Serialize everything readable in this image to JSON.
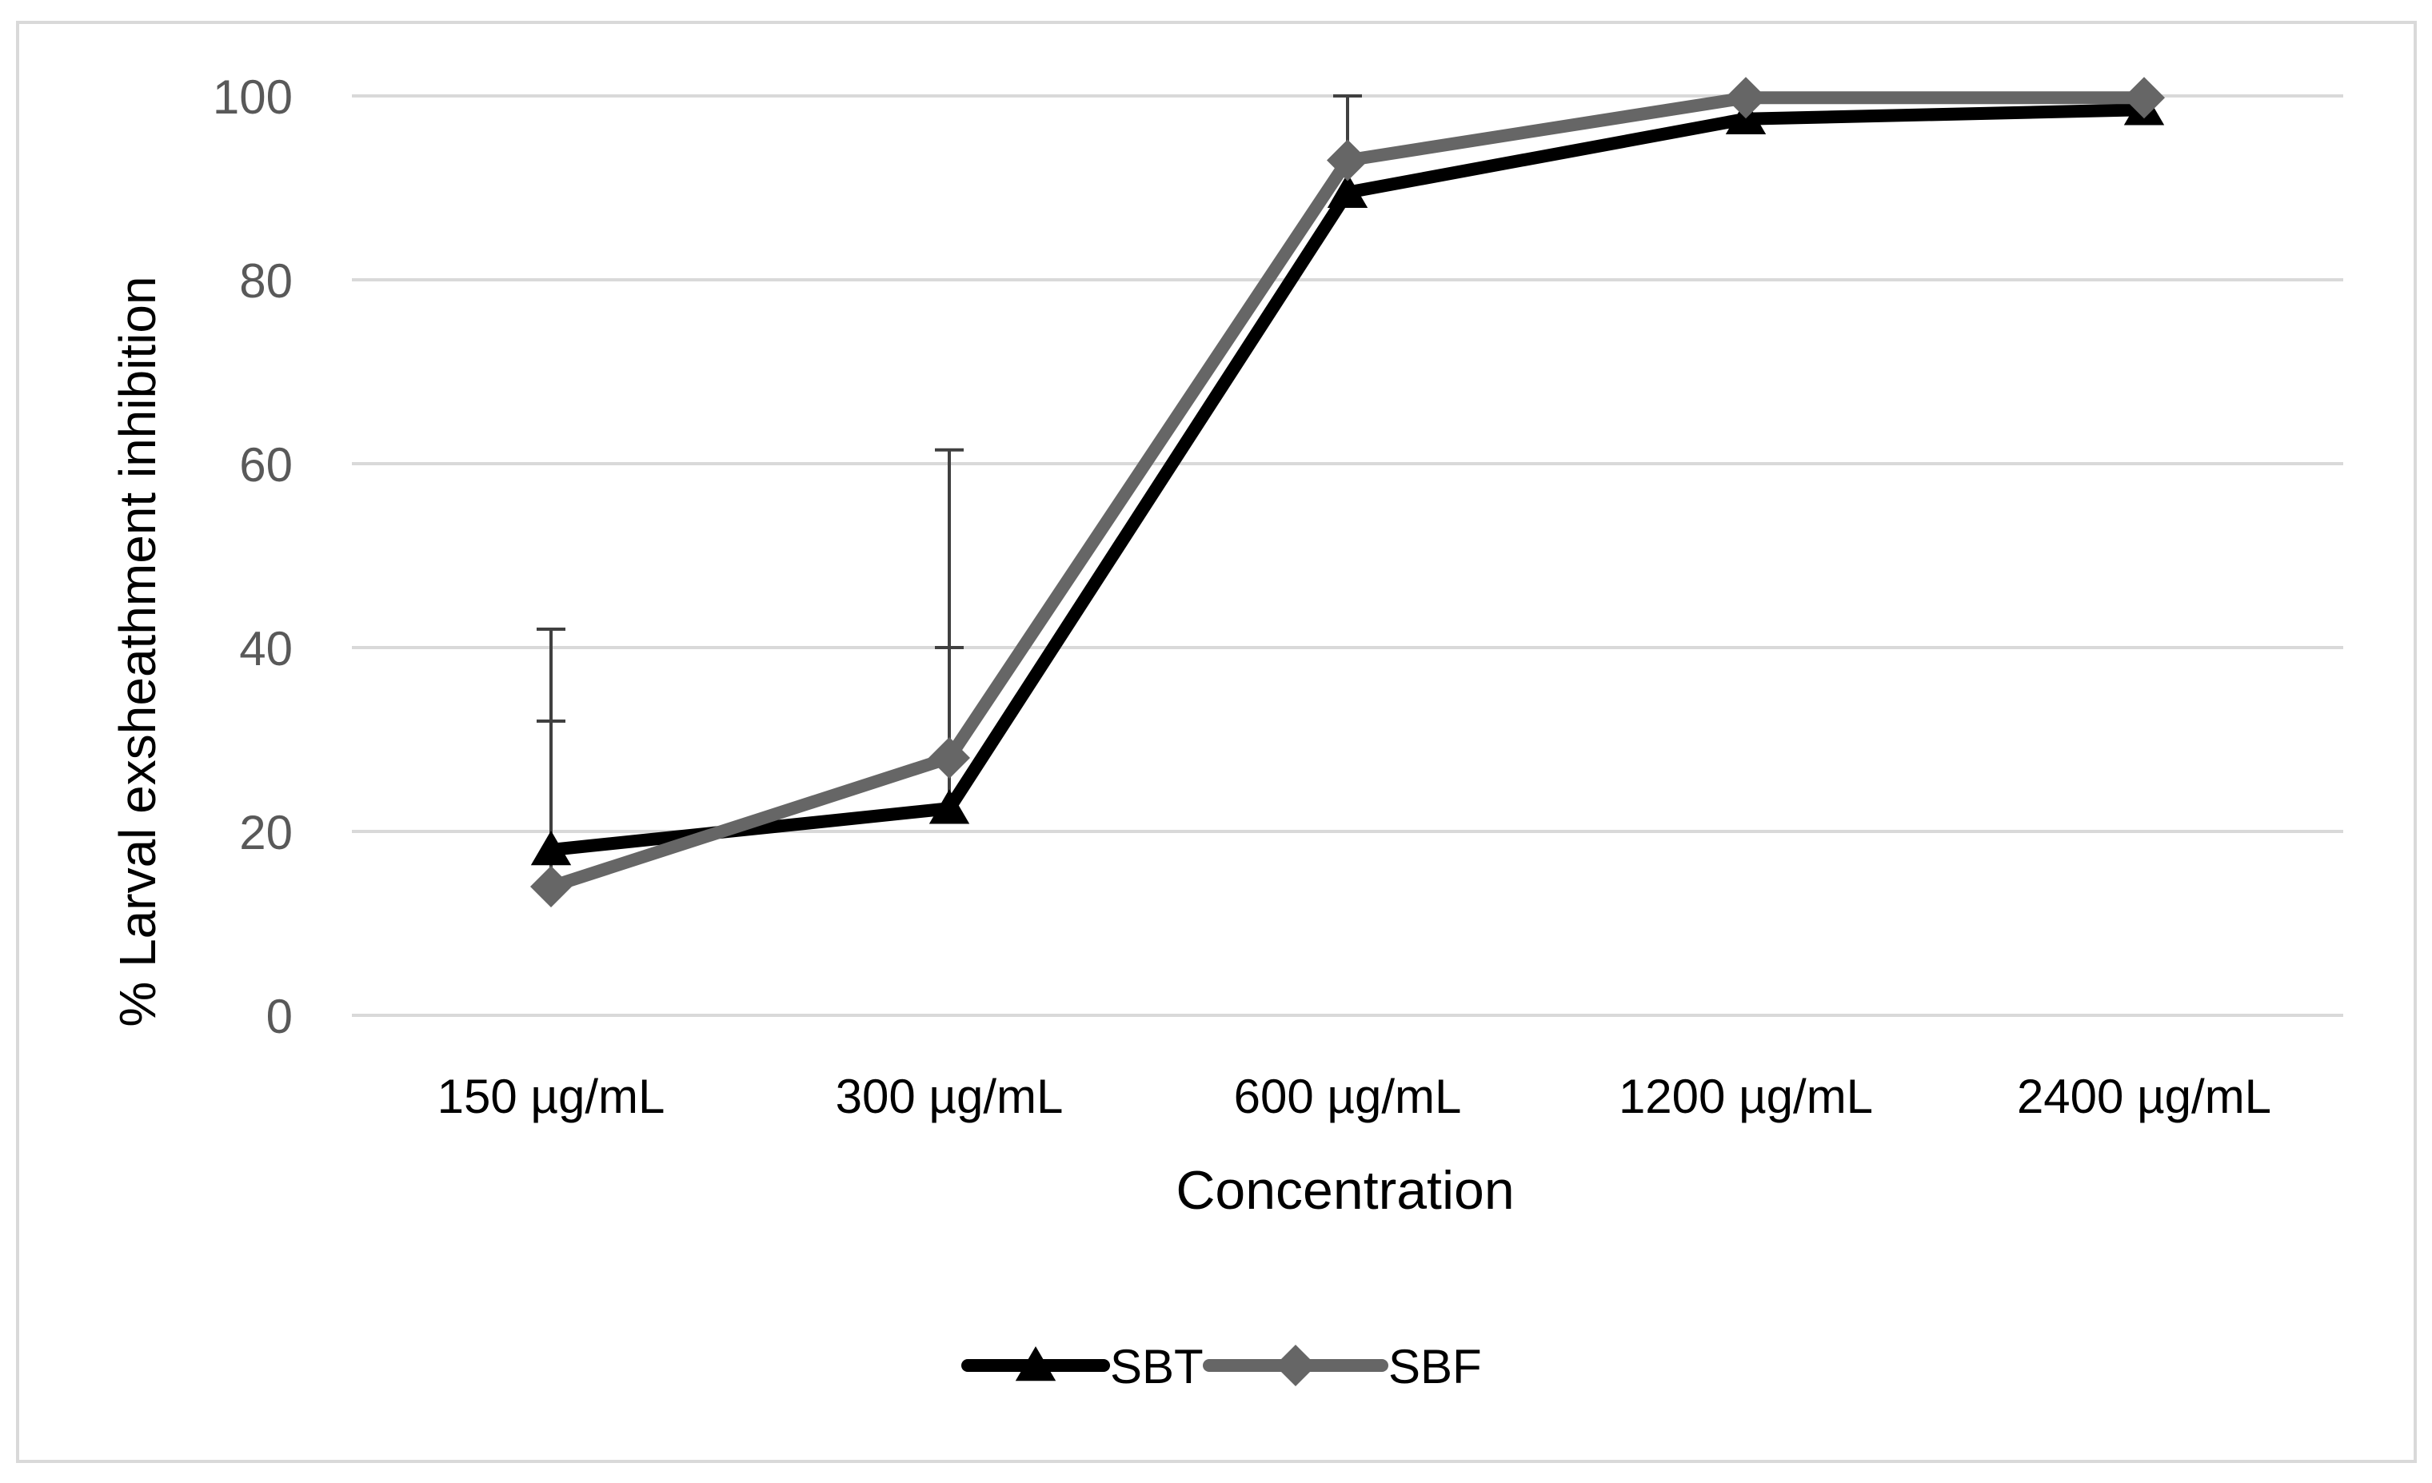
{
  "chart_data": {
    "type": "line",
    "title": "",
    "xlabel": "Concentration",
    "ylabel": "% Larval exsheathment  inhibition",
    "categories": [
      "150 µg/mL",
      "300 µg/mL",
      "600 µg/mL",
      "1200 µg/mL",
      "2400 µg/mL"
    ],
    "ylim": [
      0,
      100
    ],
    "yticks": [
      "0",
      "20",
      "40",
      "60",
      "80",
      "100"
    ],
    "grid": true,
    "legend_position": "bottom-center",
    "series": [
      {
        "name": "SBT",
        "marker": "triangle",
        "color": "#000000",
        "values": [
          18,
          22.5,
          89.5,
          97.5,
          98.5
        ],
        "error_upper": [
          32,
          40,
          100,
          null,
          null
        ]
      },
      {
        "name": "SBF",
        "marker": "diamond",
        "color": "#666666",
        "values": [
          14,
          28,
          93,
          99.8,
          99.8
        ],
        "error_upper": [
          42,
          61.5,
          null,
          null,
          null
        ]
      }
    ],
    "colors": {
      "grid": "#d9d9d9",
      "tick_label": "#595959",
      "axis_title": "#000000",
      "frame": "#d9d9d9"
    }
  }
}
